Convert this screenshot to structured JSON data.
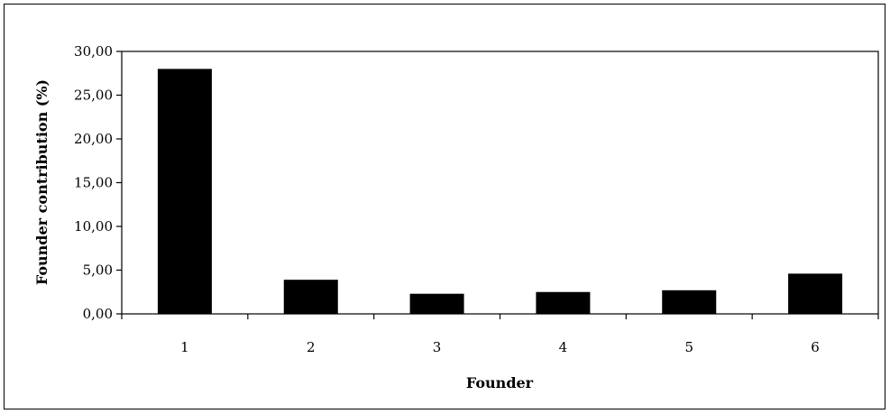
{
  "chart_data": {
    "type": "bar",
    "categories": [
      "1",
      "2",
      "3",
      "4",
      "5",
      "6"
    ],
    "values": [
      28.0,
      3.9,
      2.3,
      2.5,
      2.7,
      4.6
    ],
    "xlabel": "Founder",
    "ylabel": "Founder contribution (%)",
    "ylim": [
      0,
      30
    ],
    "yticks": [
      "0,00",
      "5,00",
      "10,00",
      "15,00",
      "20,00",
      "25,00",
      "30,00"
    ],
    "grid": false,
    "legend": "none",
    "bar_color": "#000000"
  }
}
